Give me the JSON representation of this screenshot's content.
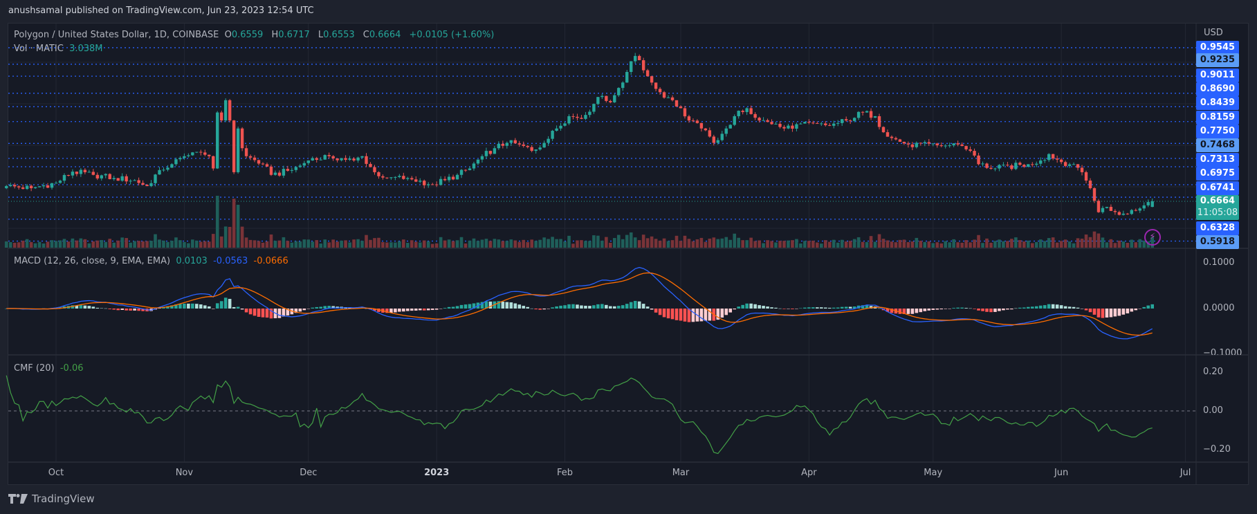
{
  "header": {
    "published": "anushsamal published on TradingView.com, Jun 23, 2023 12:54 UTC"
  },
  "legend": {
    "symbol": "Polygon / United States Dollar, 1D, COINBASE",
    "o_label": "O",
    "o": "0.6559",
    "h_label": "H",
    "h": "0.6717",
    "l_label": "L",
    "l": "0.6553",
    "c_label": "C",
    "c": "0.6664",
    "change": "+0.0105 (+1.60%)",
    "vol_label": "Vol · MATIC",
    "vol": "3.038M"
  },
  "macd_legend": {
    "label": "MACD (12, 26, close, 9, EMA, EMA)",
    "hist": "0.0103",
    "macd": "-0.0563",
    "signal": "-0.0666"
  },
  "cmf_legend": {
    "label": "CMF (20)",
    "value": "-0.06"
  },
  "price_axis": {
    "currency": "USD",
    "levels": [
      {
        "value": "0.9545",
        "style": "blue"
      },
      {
        "value": "0.9235",
        "style": "light"
      },
      {
        "value": "0.9011",
        "style": "blue"
      },
      {
        "value": "0.8690",
        "style": "blue"
      },
      {
        "value": "0.8439",
        "style": "blue"
      },
      {
        "value": "0.8159",
        "style": "blue"
      },
      {
        "value": "0.7750",
        "style": "blue"
      },
      {
        "value": "0.7468",
        "style": "light"
      },
      {
        "value": "0.7313",
        "style": "blue"
      },
      {
        "value": "0.6975",
        "style": "blue"
      },
      {
        "value": "0.6741",
        "style": "blue"
      },
      {
        "value": "0.6328",
        "style": "blue"
      },
      {
        "value": "0.5918",
        "style": "light"
      }
    ],
    "current_price": "0.6664",
    "countdown": "11:05:08"
  },
  "macd_axis": [
    "0.1000",
    "0.0000",
    "−0.1000"
  ],
  "cmf_axis": [
    "0.20",
    "0.00",
    "−0.20"
  ],
  "time_axis": [
    {
      "label": "Oct",
      "date": "2022-10-01"
    },
    {
      "label": "Nov",
      "date": "2022-11-01"
    },
    {
      "label": "Dec",
      "date": "2022-12-01"
    },
    {
      "label": "2023",
      "date": "2023-01-01",
      "bold": true
    },
    {
      "label": "Feb",
      "date": "2023-02-01"
    },
    {
      "label": "Mar",
      "date": "2023-03-01"
    },
    {
      "label": "Apr",
      "date": "2023-04-01"
    },
    {
      "label": "May",
      "date": "2023-05-01"
    },
    {
      "label": "Jun",
      "date": "2023-06-01"
    },
    {
      "label": "Jul",
      "date": "2023-07-01"
    }
  ],
  "footer": {
    "brand": "TradingView"
  },
  "colors": {
    "up": "#26a69a",
    "down": "#ef5350",
    "macd": "#2962ff",
    "signal": "#ff6d00",
    "cmf": "#43a047",
    "levels": "#2962ff",
    "alert": "#9c27b0"
  },
  "chart_data": {
    "type": "candlestick",
    "interval": "1D",
    "y_scale": "linear",
    "ylim": [
      0.57,
      0.97
    ],
    "last_candle": {
      "date": "2023-06-23",
      "open": 0.6559,
      "high": 0.6717,
      "low": 0.6553,
      "close": 0.6664
    },
    "close_keypoints": [
      [
        "2022-09-19",
        0.695
      ],
      [
        "2022-09-25",
        0.691
      ],
      [
        "2022-10-01",
        0.701
      ],
      [
        "2022-10-05",
        0.722
      ],
      [
        "2022-10-10",
        0.716
      ],
      [
        "2022-10-15",
        0.71
      ],
      [
        "2022-10-20",
        0.706
      ],
      [
        "2022-10-23",
        0.695
      ],
      [
        "2022-10-26",
        0.725
      ],
      [
        "2022-10-29",
        0.736
      ],
      [
        "2022-11-01",
        0.751
      ],
      [
        "2022-11-05",
        0.758
      ],
      [
        "2022-11-07",
        0.751
      ],
      [
        "2022-11-08",
        0.728
      ],
      [
        "2022-11-09",
        0.833
      ],
      [
        "2022-11-10",
        0.818
      ],
      [
        "2022-11-11",
        0.856
      ],
      [
        "2022-11-12",
        0.818
      ],
      [
        "2022-11-13",
        0.721
      ],
      [
        "2022-11-14",
        0.803
      ],
      [
        "2022-11-15",
        0.766
      ],
      [
        "2022-11-16",
        0.751
      ],
      [
        "2022-11-20",
        0.736
      ],
      [
        "2022-11-22",
        0.716
      ],
      [
        "2022-11-27",
        0.725
      ],
      [
        "2022-12-01",
        0.743
      ],
      [
        "2022-12-06",
        0.751
      ],
      [
        "2022-12-12",
        0.743
      ],
      [
        "2022-12-14",
        0.751
      ],
      [
        "2022-12-17",
        0.721
      ],
      [
        "2022-12-20",
        0.71
      ],
      [
        "2022-12-25",
        0.71
      ],
      [
        "2022-12-31",
        0.698
      ],
      [
        "2023-01-03",
        0.706
      ],
      [
        "2023-01-06",
        0.716
      ],
      [
        "2023-01-09",
        0.728
      ],
      [
        "2023-01-12",
        0.751
      ],
      [
        "2023-01-15",
        0.766
      ],
      [
        "2023-01-18",
        0.776
      ],
      [
        "2023-01-21",
        0.773
      ],
      [
        "2023-01-24",
        0.761
      ],
      [
        "2023-01-27",
        0.776
      ],
      [
        "2023-01-30",
        0.803
      ],
      [
        "2023-02-02",
        0.826
      ],
      [
        "2023-02-05",
        0.821
      ],
      [
        "2023-02-08",
        0.849
      ],
      [
        "2023-02-10",
        0.864
      ],
      [
        "2023-02-12",
        0.852
      ],
      [
        "2023-02-14",
        0.879
      ],
      [
        "2023-02-16",
        0.909
      ],
      [
        "2023-02-18",
        0.939
      ],
      [
        "2023-02-19",
        0.931
      ],
      [
        "2023-02-21",
        0.901
      ],
      [
        "2023-02-24",
        0.871
      ],
      [
        "2023-02-27",
        0.856
      ],
      [
        "2023-03-01",
        0.841
      ],
      [
        "2023-03-03",
        0.818
      ],
      [
        "2023-03-06",
        0.803
      ],
      [
        "2023-03-09",
        0.776
      ],
      [
        "2023-03-12",
        0.803
      ],
      [
        "2023-03-14",
        0.826
      ],
      [
        "2023-03-17",
        0.841
      ],
      [
        "2023-03-20",
        0.818
      ],
      [
        "2023-03-23",
        0.811
      ],
      [
        "2023-03-26",
        0.803
      ],
      [
        "2023-03-29",
        0.811
      ],
      [
        "2023-04-06",
        0.808
      ],
      [
        "2023-04-10",
        0.818
      ],
      [
        "2023-04-14",
        0.833
      ],
      [
        "2023-04-17",
        0.826
      ],
      [
        "2023-04-19",
        0.796
      ],
      [
        "2023-04-21",
        0.785
      ],
      [
        "2023-04-25",
        0.773
      ],
      [
        "2023-05-03",
        0.77
      ],
      [
        "2023-05-07",
        0.773
      ],
      [
        "2023-05-10",
        0.761
      ],
      [
        "2023-05-12",
        0.736
      ],
      [
        "2023-05-16",
        0.728
      ],
      [
        "2023-05-24",
        0.736
      ],
      [
        "2023-05-27",
        0.743
      ],
      [
        "2023-05-29",
        0.755
      ],
      [
        "2023-06-01",
        0.74
      ],
      [
        "2023-06-04",
        0.736
      ],
      [
        "2023-06-06",
        0.721
      ],
      [
        "2023-06-08",
        0.691
      ],
      [
        "2023-06-10",
        0.646
      ],
      [
        "2023-06-12",
        0.656
      ],
      [
        "2023-06-15",
        0.641
      ],
      [
        "2023-06-18",
        0.65
      ],
      [
        "2023-06-20",
        0.653
      ],
      [
        "2023-06-22",
        0.665
      ],
      [
        "2023-06-23",
        0.6664
      ]
    ]
  }
}
